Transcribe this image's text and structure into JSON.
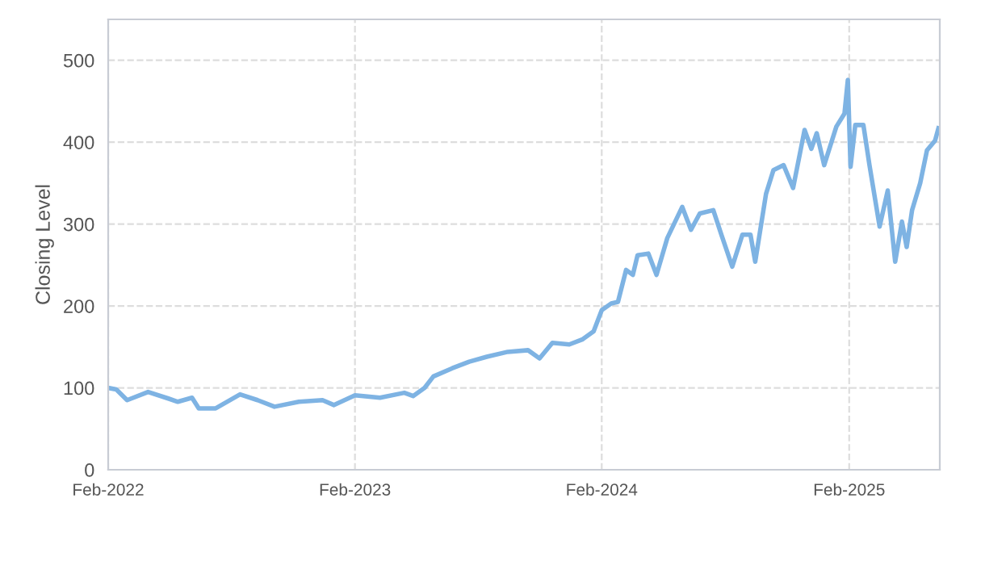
{
  "chart_data": {
    "type": "line",
    "ylabel": "Closing Level",
    "x": [
      "2022-02-01",
      "2022-02-13",
      "2022-03-01",
      "2022-04-01",
      "2022-05-01",
      "2022-05-15",
      "2022-06-05",
      "2022-06-15",
      "2022-07-10",
      "2022-08-15",
      "2022-09-10",
      "2022-10-05",
      "2022-11-10",
      "2022-12-15",
      "2023-01-01",
      "2023-02-01",
      "2023-03-10",
      "2023-04-15",
      "2023-04-28",
      "2023-05-15",
      "2023-05-28",
      "2023-06-25",
      "2023-07-20",
      "2023-08-15",
      "2023-09-15",
      "2023-10-15",
      "2023-11-01",
      "2023-11-20",
      "2023-12-15",
      "2024-01-03",
      "2024-01-20",
      "2024-02-01",
      "2024-02-15",
      "2024-02-25",
      "2024-03-08",
      "2024-03-18",
      "2024-03-25",
      "2024-04-10",
      "2024-04-22",
      "2024-05-08",
      "2024-05-30",
      "2024-06-12",
      "2024-06-25",
      "2024-07-15",
      "2024-07-27",
      "2024-08-12",
      "2024-08-27",
      "2024-09-08",
      "2024-09-15",
      "2024-10-01",
      "2024-10-12",
      "2024-10-27",
      "2024-11-10",
      "2024-11-27",
      "2024-12-07",
      "2024-12-15",
      "2024-12-26",
      "2025-01-13",
      "2025-01-25",
      "2025-01-30",
      "2025-02-03",
      "2025-02-10",
      "2025-02-22",
      "2025-03-03",
      "2025-03-18",
      "2025-03-30",
      "2025-04-10",
      "2025-04-20",
      "2025-04-27",
      "2025-05-05",
      "2025-05-17",
      "2025-05-27",
      "2025-06-08",
      "2025-06-13"
    ],
    "series": [
      {
        "color": "#7eb3e3",
        "values": [
          100,
          98,
          85,
          95,
          87,
          83,
          88,
          75,
          75,
          92,
          85,
          77,
          83,
          85,
          79,
          91,
          88,
          94,
          90,
          100,
          114,
          124,
          132,
          138,
          144,
          146,
          136,
          155,
          153,
          159,
          169,
          195,
          203,
          205,
          244,
          238,
          262,
          264,
          238,
          283,
          321,
          293,
          313,
          317,
          287,
          248,
          287,
          287,
          254,
          337,
          366,
          372,
          344,
          415,
          392,
          411,
          372,
          419,
          435,
          476,
          370,
          421,
          421,
          372,
          297,
          341,
          254,
          303,
          272,
          317,
          350,
          390,
          402,
          417
        ]
      }
    ],
    "xlim": [
      "2022-02-01",
      "2025-06-15"
    ],
    "xticks": [
      {
        "value": "2022-02-01",
        "label": "Feb-2022"
      },
      {
        "value": "2023-02-01",
        "label": "Feb-2023"
      },
      {
        "value": "2024-02-01",
        "label": "Feb-2024"
      },
      {
        "value": "2025-02-01",
        "label": "Feb-2025"
      }
    ],
    "ylim": [
      0,
      550
    ],
    "yticks": [
      0,
      100,
      200,
      300,
      400,
      500
    ],
    "grid": true,
    "legend": false,
    "marker": "none",
    "line_style": "solid"
  }
}
